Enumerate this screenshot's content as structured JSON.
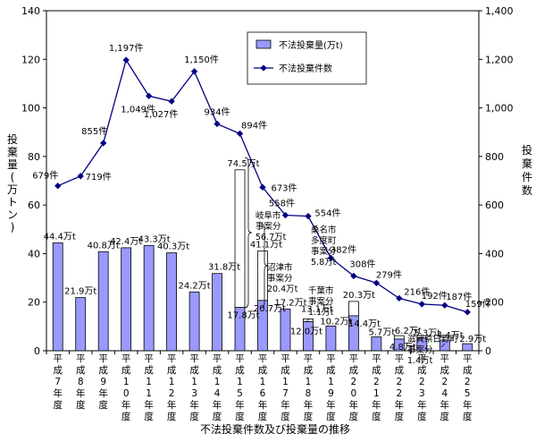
{
  "chart_data": {
    "type": "bar+line",
    "title": "不法投棄件数及び投棄量の推移",
    "y_left": {
      "label": "投棄量(万トン)",
      "lim": [
        0,
        140
      ],
      "ticks": [
        "0",
        "20",
        "40",
        "60",
        "80",
        "100",
        "120",
        "140"
      ]
    },
    "y_right": {
      "label": "投棄件数",
      "lim": [
        0,
        1400
      ],
      "ticks": [
        "0",
        "200",
        "400",
        "600",
        "800",
        "1,000",
        "1,200",
        "1,400"
      ]
    },
    "categories": [
      "平成7年度",
      "平成8年度",
      "平成9年度",
      "平成10年度",
      "平成11年度",
      "平成12年度",
      "平成13年度",
      "平成14年度",
      "平成15年度",
      "平成16年度",
      "平成17年度",
      "平成18年度",
      "平成19年度",
      "平成20年度",
      "平成21年度",
      "平成22年度",
      "平成23年度",
      "平成24年度",
      "平成25年度"
    ],
    "category_chars": [
      [
        "平",
        "成",
        "7",
        "年",
        "度"
      ],
      [
        "平",
        "成",
        "8",
        "年",
        "度"
      ],
      [
        "平",
        "成",
        "9",
        "年",
        "度"
      ],
      [
        "平",
        "成",
        "1",
        "0",
        "年",
        "度"
      ],
      [
        "平",
        "成",
        "1",
        "1",
        "年",
        "度"
      ],
      [
        "平",
        "成",
        "1",
        "2",
        "年",
        "度"
      ],
      [
        "平",
        "成",
        "1",
        "3",
        "年",
        "度"
      ],
      [
        "平",
        "成",
        "1",
        "4",
        "年",
        "度"
      ],
      [
        "平",
        "成",
        "1",
        "5",
        "年",
        "度"
      ],
      [
        "平",
        "成",
        "1",
        "6",
        "年",
        "度"
      ],
      [
        "平",
        "成",
        "1",
        "7",
        "年",
        "度"
      ],
      [
        "平",
        "成",
        "1",
        "8",
        "年",
        "度"
      ],
      [
        "平",
        "成",
        "1",
        "9",
        "年",
        "度"
      ],
      [
        "平",
        "成",
        "2",
        "0",
        "年",
        "度"
      ],
      [
        "平",
        "成",
        "2",
        "1",
        "年",
        "度"
      ],
      [
        "平",
        "成",
        "2",
        "2",
        "年",
        "度"
      ],
      [
        "平",
        "成",
        "2",
        "3",
        "年",
        "度"
      ],
      [
        "平",
        "成",
        "2",
        "4",
        "年",
        "度"
      ],
      [
        "平",
        "成",
        "2",
        "5",
        "年",
        "度"
      ]
    ],
    "series": [
      {
        "name": "不法投棄量(万t)",
        "type": "bar",
        "axis": "left",
        "color": "#9999ff",
        "values": [
          44.4,
          21.9,
          40.8,
          42.4,
          43.3,
          40.3,
          24.2,
          31.8,
          17.8,
          20.7,
          17.2,
          12.0,
          10.2,
          14.4,
          5.7,
          4.8,
          5.3,
          4.4,
          2.9
        ],
        "labels": [
          "44.4万t",
          "21.9万t",
          "40.8万t",
          "42.4万t",
          "43.3万t",
          "40.3万t",
          "24.2万t",
          "31.8万t",
          "17.8万t",
          "20.7万t",
          "17.2万t",
          "12.0万t",
          "10.2万t",
          "14.4万t",
          "5.7万t",
          "4.8万t",
          "5.3万t",
          "4.4万t",
          "2.9万t"
        ],
        "stacked_totals": [
          null,
          null,
          null,
          null,
          null,
          null,
          null,
          null,
          74.5,
          41.1,
          null,
          13.1,
          null,
          20.3,
          null,
          6.2,
          null,
          null,
          null
        ],
        "stacked_labels": [
          "",
          "",
          "",
          "",
          "",
          "",
          "",
          "",
          "74.5万t",
          "41.1万t",
          "",
          "13.1万t",
          "",
          "20.3万t",
          "",
          "6.2万t",
          "",
          "",
          ""
        ]
      },
      {
        "name": "不法投棄件数",
        "type": "line",
        "axis": "right",
        "color": "#000080",
        "values": [
          679,
          719,
          855,
          1197,
          1049,
          1027,
          1150,
          934,
          894,
          673,
          558,
          554,
          382,
          308,
          279,
          216,
          192,
          187,
          159
        ],
        "labels": [
          "679件",
          "719件",
          "855件",
          "1,197件",
          "1,049件",
          "1,027件",
          "1,150件",
          "934件",
          "894件",
          "673件",
          "558件",
          "554件",
          "382件",
          "308件",
          "279件",
          "216件",
          "192件",
          "187件",
          "159件"
        ]
      }
    ],
    "annotations": [
      {
        "lines": [
          "岐阜市",
          "事案分",
          "56.7万t"
        ]
      },
      {
        "lines": [
          "沼津市",
          "事案分",
          "20.4万t"
        ]
      },
      {
        "lines": [
          "桑名市",
          "多度町",
          "事案分",
          "5.8万t"
        ]
      },
      {
        "lines": [
          "千葉市",
          "事案分",
          "1.1万t"
        ]
      },
      {
        "lines": [
          "滋賀県日野町",
          "事案分",
          "1.4万t"
        ]
      }
    ],
    "legend": {
      "position": "top-center",
      "entries": [
        "不法投棄量(万t)",
        "不法投棄件数"
      ]
    },
    "grid": false
  }
}
